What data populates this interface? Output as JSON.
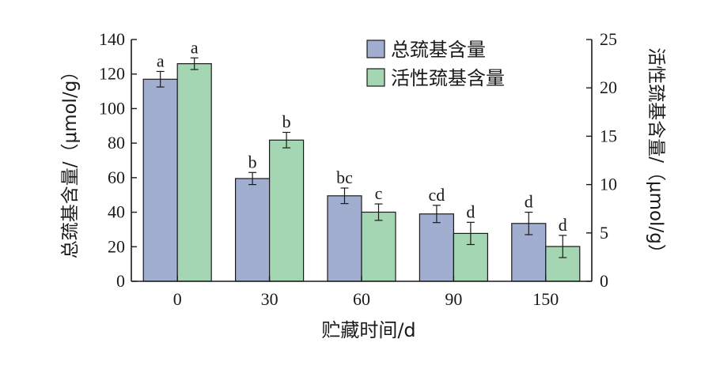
{
  "chart_data": {
    "type": "bar",
    "xlabel": "贮藏时间/d",
    "ylabel_left": "总巯基含量/（μmol/g）",
    "ylabel_right": "活性巯基含量/（μmol/g）",
    "categories": [
      "0",
      "30",
      "60",
      "90",
      "150"
    ],
    "ylim_left": [
      0,
      140
    ],
    "ylim_right": [
      0,
      25
    ],
    "yticks_left": [
      "0",
      "20",
      "40",
      "60",
      "80",
      "100",
      "120",
      "140"
    ],
    "yticks_right": [
      "0",
      "5",
      "10",
      "15",
      "20",
      "25"
    ],
    "legend_position": "top-right",
    "series": [
      {
        "name": "总巯基含量",
        "axis": "left",
        "color": "#a2aecf",
        "values": [
          117,
          59.5,
          49.5,
          39,
          33.5
        ],
        "errors": [
          4.5,
          3.5,
          4.5,
          5,
          6.5
        ],
        "letters": [
          "a",
          "b",
          "bc",
          "cd",
          "d"
        ]
      },
      {
        "name": "活性巯基含量",
        "axis": "right",
        "color": "#a5d6b3",
        "values": [
          22.5,
          14.6,
          7.15,
          4.95,
          3.6
        ],
        "errors": [
          0.6,
          0.8,
          0.85,
          1.15,
          1.15
        ],
        "letters": [
          "a",
          "b",
          "c",
          "d",
          "d"
        ]
      }
    ]
  }
}
